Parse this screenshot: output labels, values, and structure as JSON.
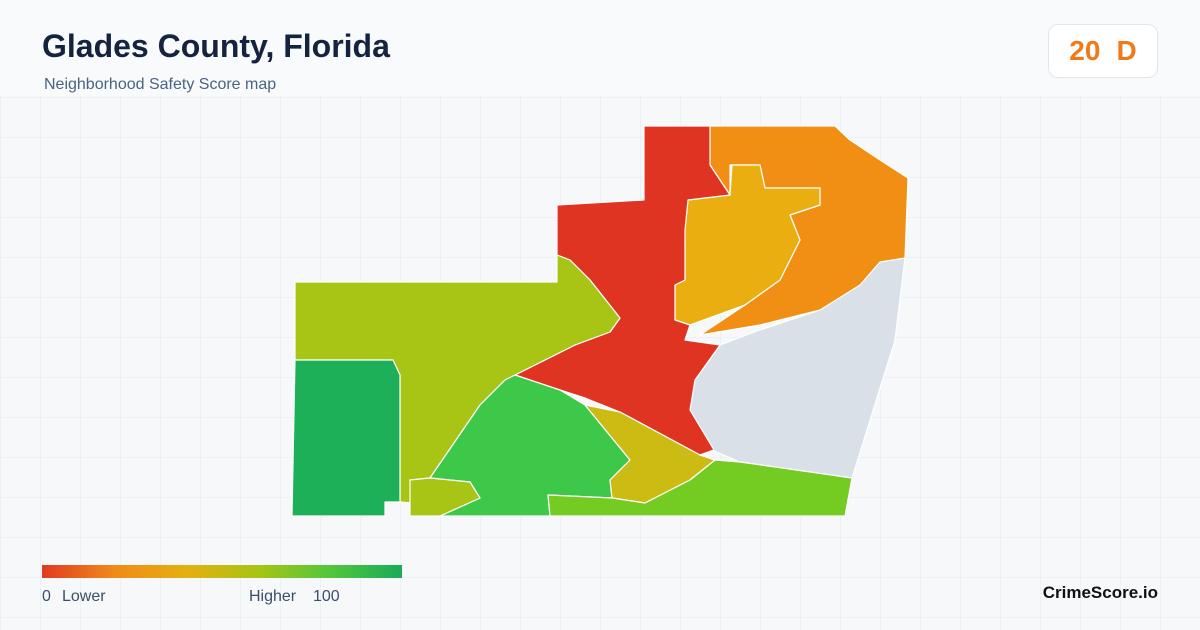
{
  "header": {
    "title": "Glades County, Florida",
    "subtitle": "Neighborhood Safety Score map"
  },
  "score": {
    "value": "20",
    "grade": "D"
  },
  "legend": {
    "min": "0",
    "min_label": "Lower",
    "max_label": "Higher",
    "max": "100"
  },
  "footer": {
    "brand": "CrimeScore.io"
  }
}
